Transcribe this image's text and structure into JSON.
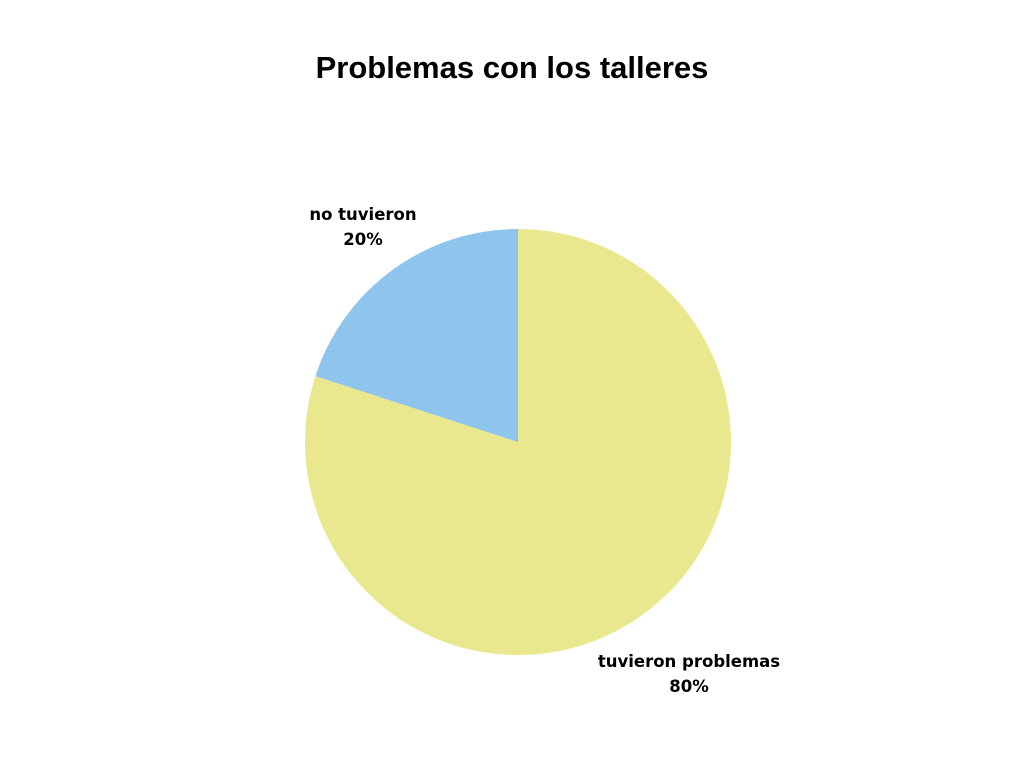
{
  "chart_data": {
    "type": "pie",
    "title": "Problemas con los talleres",
    "start_angle_deg": 0,
    "direction": "clockwise",
    "slices": [
      {
        "label": "tuvieron problemas",
        "value": 80,
        "value_text": "80%",
        "color": "#e9e88f"
      },
      {
        "label": "no tuvieron",
        "value": 20,
        "value_text": "20%",
        "color": "#8fc4ec"
      }
    ],
    "legend": "none"
  }
}
